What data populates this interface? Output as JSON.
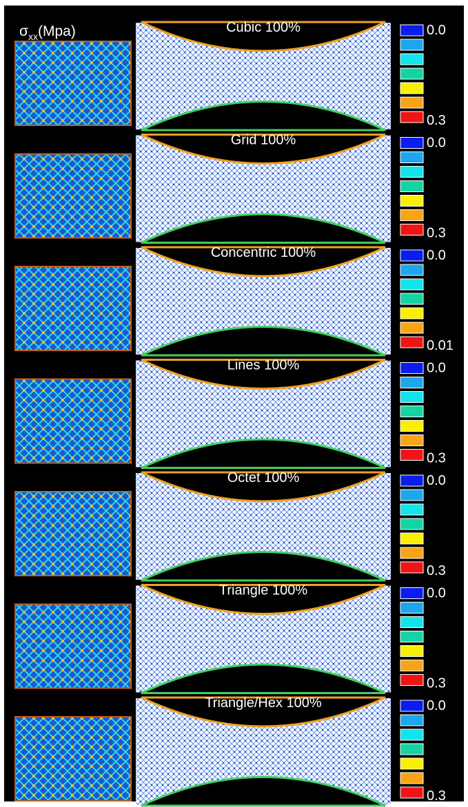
{
  "header": {
    "symbol": "σ",
    "subscript": "xx",
    "unit": "(Mpa)"
  },
  "panels": [
    {
      "title": "Cubic 100%",
      "scale_min": "0.0",
      "scale_max": "0.3"
    },
    {
      "title": "Grid 100%",
      "scale_min": "0.0",
      "scale_max": "0.3"
    },
    {
      "title": "Concentric 100%",
      "scale_min": "0.0",
      "scale_max": "0.01"
    },
    {
      "title": "Lines 100%",
      "scale_min": "0.0",
      "scale_max": "0.3"
    },
    {
      "title": "Octet 100%",
      "scale_min": "0.0",
      "scale_max": "0.3"
    },
    {
      "title": "Triangle 100%",
      "scale_min": "0.0",
      "scale_max": "0.3"
    },
    {
      "title": "Triangle/Hex 100%",
      "scale_min": "0.0",
      "scale_max": "0.3"
    }
  ]
}
